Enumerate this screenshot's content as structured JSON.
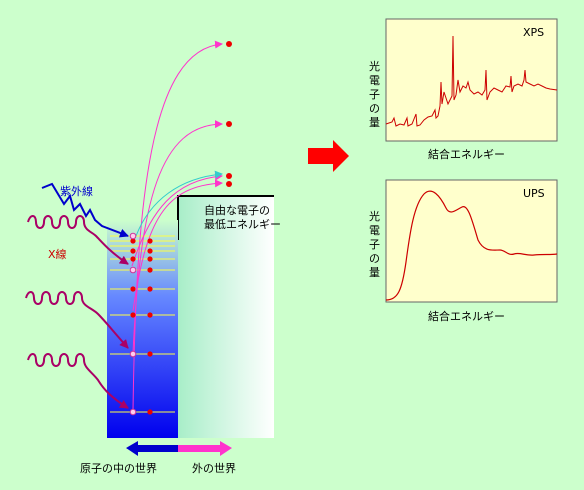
{
  "incident": {
    "uv_label": "紫外線",
    "xray_label": "X線"
  },
  "threshold": {
    "line1": "自由な電子の",
    "line2": "最低エネルギー"
  },
  "regions": {
    "inside": "原子の中の世界",
    "outside": "外の世界"
  },
  "spectra": [
    {
      "tag": "XPS",
      "ylabel": "光電子の量",
      "xlabel": "結合エネルギー"
    },
    {
      "tag": "UPS",
      "ylabel": "光電子の量",
      "xlabel": "結合エネルギー"
    }
  ],
  "colors": {
    "background": "#ccffcc",
    "panel": "#ffffcc",
    "spectrum": "#cc0000",
    "arrow": "#ff0000",
    "uv": "#0000cc",
    "xray": "#aa0066",
    "electron_path_magenta": "#ff33cc",
    "electron_path_cyan": "#33cccc",
    "level_line": "#ffff44",
    "electron": "#ee0000"
  }
}
